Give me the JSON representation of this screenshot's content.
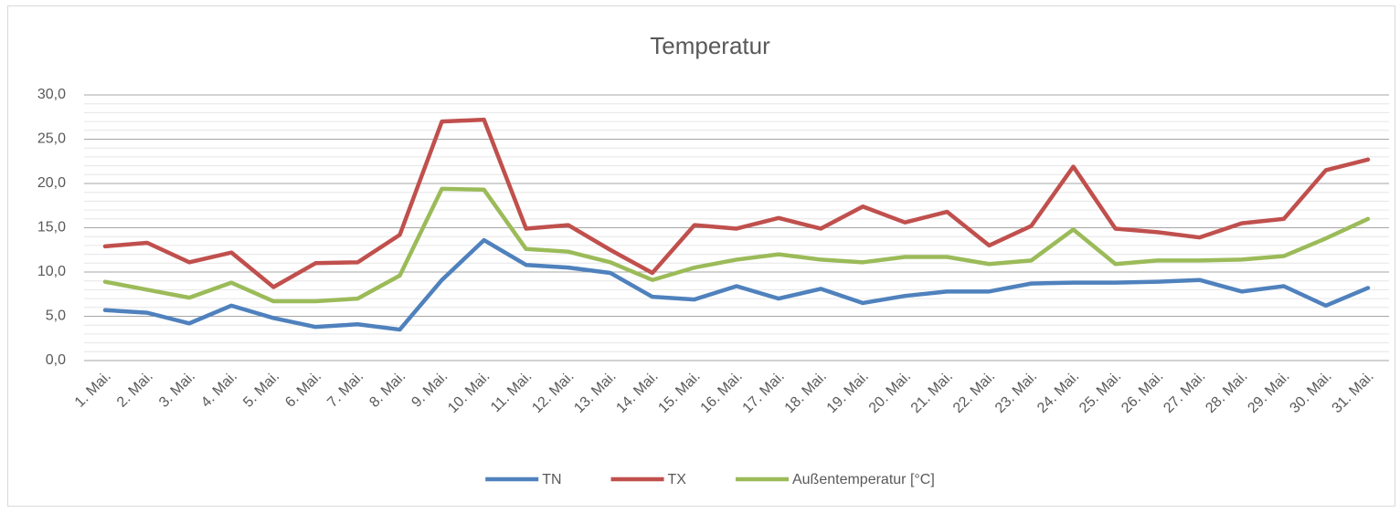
{
  "chart_data": {
    "type": "line",
    "title": "Temperatur",
    "categories": [
      "1. Mai.",
      "2. Mai.",
      "3. Mai.",
      "4. Mai.",
      "5. Mai.",
      "6. Mai.",
      "7. Mai.",
      "8. Mai.",
      "9. Mai.",
      "10. Mai.",
      "11. Mai.",
      "12. Mai.",
      "13. Mai.",
      "14. Mai.",
      "15. Mai.",
      "16. Mai.",
      "17. Mai.",
      "18. Mai.",
      "19. Mai.",
      "20. Mai.",
      "21. Mai.",
      "22. Mai.",
      "23. Mai.",
      "24. Mai.",
      "25. Mai.",
      "26. Mai.",
      "27. Mai.",
      "28. Mai.",
      "29. Mai.",
      "30. Mai.",
      "31. Mai."
    ],
    "series": [
      {
        "name": "TN",
        "color": "#4f81bd",
        "values": [
          5.7,
          5.4,
          4.2,
          6.2,
          4.8,
          3.8,
          4.1,
          3.5,
          9.1,
          13.6,
          10.8,
          10.5,
          9.9,
          7.2,
          6.9,
          8.4,
          7.0,
          8.1,
          6.5,
          7.3,
          7.8,
          7.8,
          8.7,
          8.8,
          8.8,
          8.9,
          9.1,
          7.8,
          8.4,
          6.2,
          8.2
        ]
      },
      {
        "name": "TX",
        "color": "#c0504d",
        "values": [
          12.9,
          13.3,
          11.1,
          12.2,
          8.3,
          11.0,
          11.1,
          14.2,
          27.0,
          27.2,
          14.9,
          15.3,
          12.5,
          9.9,
          15.3,
          14.9,
          16.1,
          14.9,
          17.4,
          15.6,
          16.8,
          13.0,
          15.2,
          21.9,
          14.9,
          14.5,
          13.9,
          15.5,
          16.0,
          21.5,
          22.7
        ]
      },
      {
        "name": "Außentemperatur [°C]",
        "color": "#9bbb59",
        "values": [
          8.9,
          8.0,
          7.1,
          8.8,
          6.7,
          6.7,
          7.0,
          9.6,
          19.4,
          19.3,
          12.6,
          12.3,
          11.1,
          9.1,
          10.5,
          11.4,
          12.0,
          11.4,
          11.1,
          11.7,
          11.7,
          10.9,
          11.3,
          14.8,
          10.9,
          11.3,
          11.3,
          11.4,
          11.8,
          13.8,
          16.0
        ]
      }
    ],
    "ylim": [
      0,
      30
    ],
    "yticks": [
      {
        "value": 0,
        "label": "0,0"
      },
      {
        "value": 5,
        "label": "5,0"
      },
      {
        "value": 10,
        "label": "10,0"
      },
      {
        "value": 15,
        "label": "15,0"
      },
      {
        "value": 20,
        "label": "20,0"
      },
      {
        "value": 25,
        "label": "25,0"
      },
      {
        "value": 30,
        "label": "30,0"
      }
    ],
    "grid": true,
    "minor_grid": 1,
    "legend": "bottom"
  }
}
